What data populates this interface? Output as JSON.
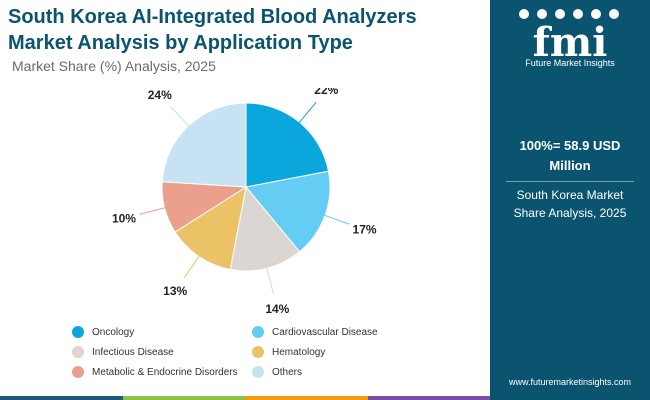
{
  "header": {
    "title_line1": "South Korea AI-Integrated Blood Analyzers",
    "title_line2": "Market Analysis by Application Type",
    "subtitle": "Market Share (%) Analysis, 2025"
  },
  "chart_data": {
    "type": "pie",
    "title": "South Korea AI-Integrated Blood Analyzers Market Analysis by Application Type",
    "subtitle": "Market Share (%) Analysis, 2025",
    "categories": [
      "Oncology",
      "Cardiovascular Disease",
      "Infectious Disease",
      "Hematology",
      "Metabolic & Endocrine Disorders",
      "Others"
    ],
    "values": [
      22,
      17,
      14,
      13,
      10,
      24
    ],
    "labels": [
      "22%",
      "17%",
      "14%",
      "13%",
      "10%",
      "24%"
    ],
    "colors": [
      "#0aa6dc",
      "#65ccf3",
      "#dcd6d2",
      "#ebc366",
      "#eaa08c",
      "#c6e2f3"
    ],
    "legend_position": "bottom"
  },
  "sidebar": {
    "brand_mark": "fmi",
    "brand_name": "Future Market Insights",
    "total_line1": "100%= 58.9 USD",
    "total_line2": "Million",
    "region_line1": "South Korea Market",
    "region_line2": "Share Analysis, 2025",
    "website": "www.futuremarketinsights.com"
  },
  "colors": {
    "sidebar_bg": "#0a5470",
    "title": "#0a5470",
    "bar_segments": [
      "#1f5a7a",
      "#8bc34a",
      "#f39c12",
      "#7b4ea3"
    ]
  }
}
